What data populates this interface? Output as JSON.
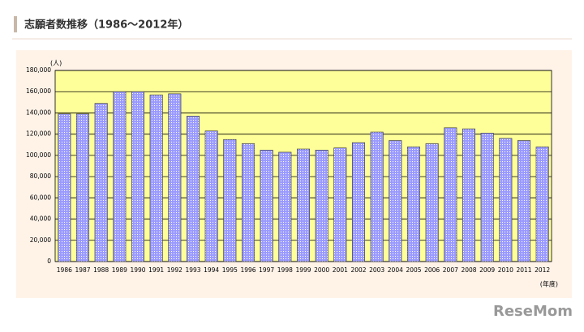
{
  "header": {
    "title": "志願者数推移（1986〜2012年）"
  },
  "chart_data": {
    "type": "bar",
    "y_unit": "(人)",
    "x_unit": "(年度)",
    "categories": [
      "1986",
      "1987",
      "1988",
      "1989",
      "1990",
      "1991",
      "1992",
      "1993",
      "1994",
      "1995",
      "1996",
      "1997",
      "1998",
      "1999",
      "2000",
      "2001",
      "2002",
      "2003",
      "2004",
      "2005",
      "2006",
      "2007",
      "2008",
      "2009",
      "2010",
      "2011",
      "2012"
    ],
    "values": [
      139000,
      139000,
      149000,
      160000,
      160000,
      157000,
      158000,
      137000,
      123000,
      115000,
      111000,
      105000,
      103000,
      106000,
      105000,
      107000,
      112000,
      122000,
      114000,
      108000,
      111000,
      126000,
      125000,
      121000,
      116000,
      114000,
      108000
    ],
    "color": "#9999ff",
    "ylim": [
      0,
      180000
    ],
    "yticks": [
      0,
      {
        "value": 20000,
        "label": "20,000"
      },
      {
        "value": 40000,
        "label": "40,000"
      },
      {
        "value": 60000,
        "label": "60,000"
      },
      {
        "value": 80000,
        "label": "80,000"
      },
      {
        "value": 100000,
        "label": "100,000"
      },
      {
        "value": 120000,
        "label": "120,000"
      },
      {
        "value": 140000,
        "label": "140,000"
      },
      {
        "value": 160000,
        "label": "160,000"
      },
      {
        "value": 180000,
        "label": "180,000"
      }
    ],
    "grid": true
  },
  "logo": "ReseMom"
}
